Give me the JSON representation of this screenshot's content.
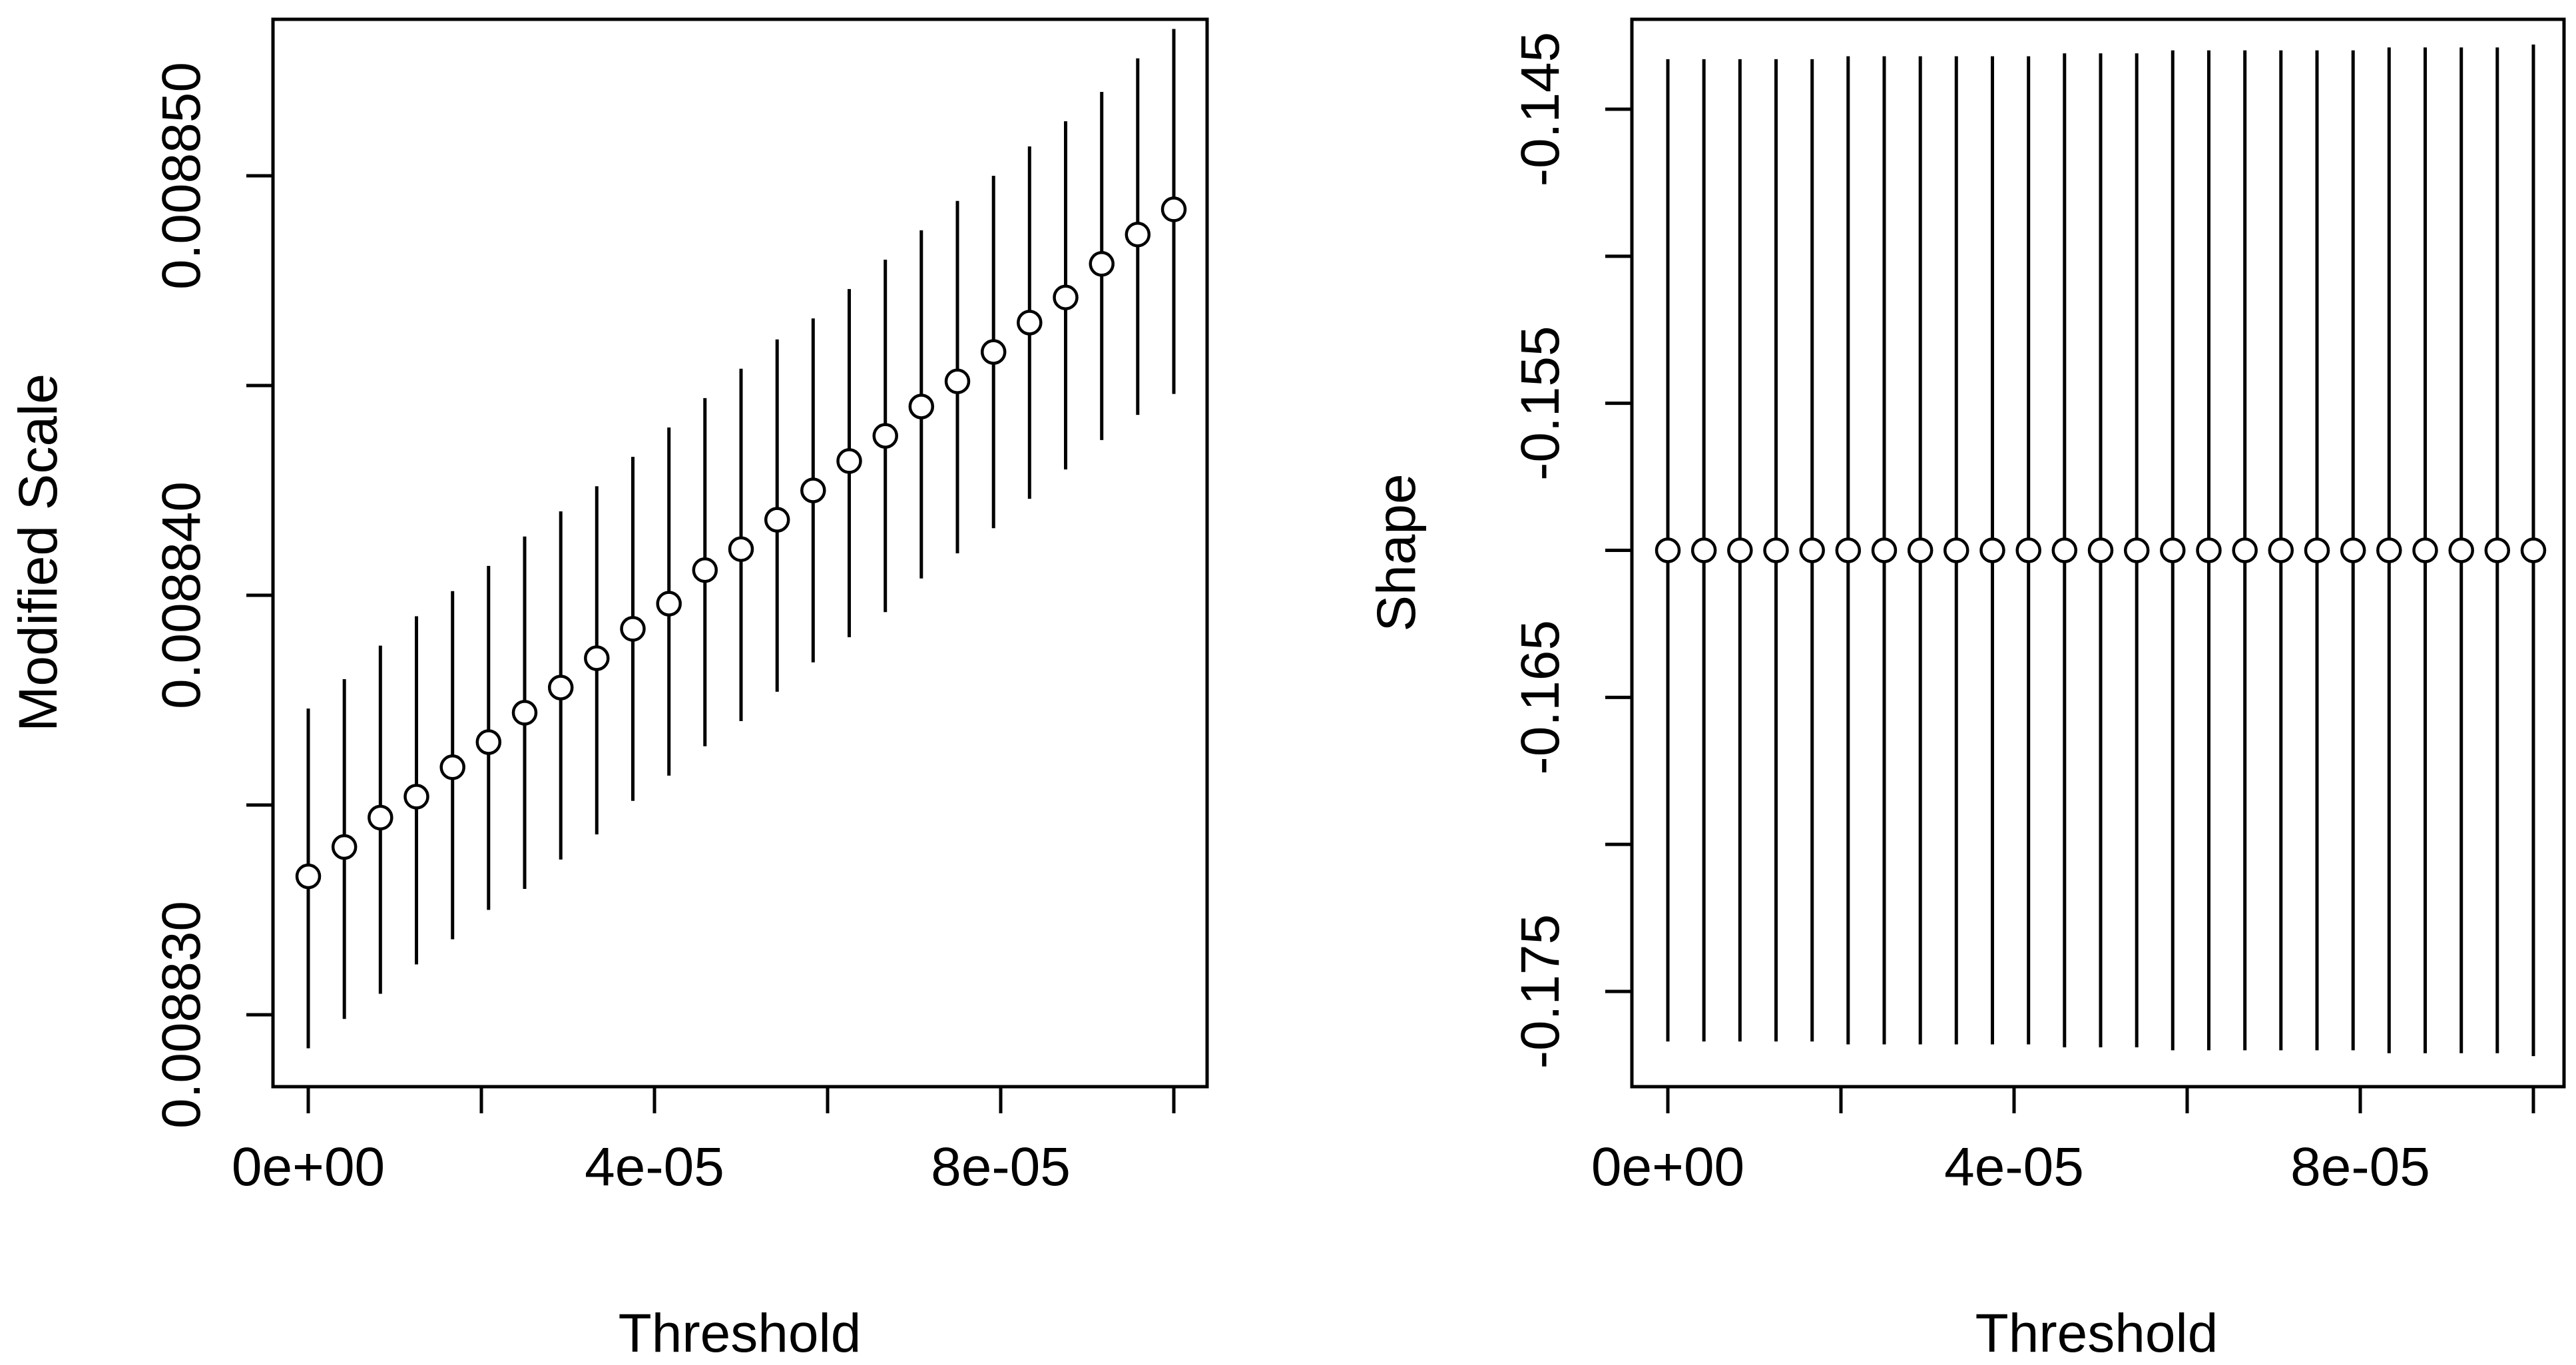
{
  "chart_data": [
    {
      "type": "scatter",
      "error_bars": true,
      "title": "",
      "xlabel": "Threshold",
      "ylabel": "Modified Scale",
      "xlim": [
        0,
        0.0001
      ],
      "ylim": [
        0.008828,
        0.008854
      ],
      "x_ticks": [
        0,
        2e-05,
        4e-05,
        6e-05,
        8e-05,
        0.0001
      ],
      "x_tick_labels": [
        {
          "value": 0,
          "label": "0e+00"
        },
        {
          "value": 4e-05,
          "label": "4e-05"
        },
        {
          "value": 8e-05,
          "label": "8e-05"
        }
      ],
      "y_ticks": [
        0.00883,
        0.008835,
        0.00884,
        0.008845,
        0.00885
      ],
      "y_tick_labels": [
        {
          "value": 0.00883,
          "label": "0.008830"
        },
        {
          "value": 0.00884,
          "label": "0.008840"
        },
        {
          "value": 0.00885,
          "label": "0.008850"
        }
      ],
      "grid": false,
      "legend": "none",
      "series": [
        {
          "x": [
            0,
            4.167e-06,
            8.333e-06,
            1.25e-05,
            1.667e-05,
            2.083e-05,
            2.5e-05,
            2.917e-05,
            3.333e-05,
            3.75e-05,
            4.167e-05,
            4.583e-05,
            5e-05,
            5.417e-05,
            5.833e-05,
            6.25e-05,
            6.667e-05,
            7.083e-05,
            7.5e-05,
            7.917e-05,
            8.333e-05,
            8.75e-05,
            9.167e-05,
            9.583e-05,
            0.0001
          ],
          "y": [
            0.0088333,
            0.008834,
            0.0088347,
            0.0088352,
            0.0088359,
            0.0088365,
            0.0088372,
            0.0088378,
            0.0088385,
            0.0088392,
            0.0088398,
            0.0088406,
            0.0088411,
            0.0088418,
            0.0088425,
            0.0088432,
            0.0088438,
            0.0088445,
            0.0088451,
            0.0088458,
            0.0088465,
            0.0088471,
            0.0088479,
            0.0088486,
            0.0088492
          ],
          "lower": [
            0.0088292,
            0.0088299,
            0.0088305,
            0.0088312,
            0.0088318,
            0.0088325,
            0.008833,
            0.0088337,
            0.0088343,
            0.0088351,
            0.0088357,
            0.0088364,
            0.008837,
            0.0088377,
            0.0088384,
            0.008839,
            0.0088396,
            0.0088404,
            0.008841,
            0.0088416,
            0.0088423,
            0.008843,
            0.0088437,
            0.0088443,
            0.0088448
          ],
          "upper": [
            0.0088373,
            0.008838,
            0.0088388,
            0.0088395,
            0.0088401,
            0.0088407,
            0.0088414,
            0.008842,
            0.0088426,
            0.0088433,
            0.008844,
            0.0088447,
            0.0088454,
            0.0088461,
            0.0088466,
            0.0088473,
            0.008848,
            0.0088487,
            0.0088494,
            0.00885,
            0.0088507,
            0.0088513,
            0.008852,
            0.0088528,
            0.0088535
          ]
        }
      ]
    },
    {
      "type": "scatter",
      "error_bars": true,
      "title": "",
      "xlabel": "Threshold",
      "ylabel": "Shape",
      "xlim": [
        0,
        0.0001
      ],
      "ylim": [
        -0.1785,
        -0.1418
      ],
      "x_ticks": [
        0,
        2e-05,
        4e-05,
        6e-05,
        8e-05,
        0.0001
      ],
      "x_tick_labels": [
        {
          "value": 0,
          "label": "0e+00"
        },
        {
          "value": 4e-05,
          "label": "4e-05"
        },
        {
          "value": 8e-05,
          "label": "8e-05"
        }
      ],
      "y_ticks": [
        -0.175,
        -0.17,
        -0.165,
        -0.16,
        -0.155,
        -0.15,
        -0.145
      ],
      "y_tick_labels": [
        {
          "value": -0.175,
          "label": "-0.175"
        },
        {
          "value": -0.165,
          "label": "-0.165"
        },
        {
          "value": -0.155,
          "label": "-0.155"
        },
        {
          "value": -0.145,
          "label": "-0.145"
        }
      ],
      "grid": false,
      "legend": "none",
      "series": [
        {
          "x": [
            0,
            4.167e-06,
            8.333e-06,
            1.25e-05,
            1.667e-05,
            2.083e-05,
            2.5e-05,
            2.917e-05,
            3.333e-05,
            3.75e-05,
            4.167e-05,
            4.583e-05,
            5e-05,
            5.417e-05,
            5.833e-05,
            6.25e-05,
            6.667e-05,
            7.083e-05,
            7.5e-05,
            7.917e-05,
            8.333e-05,
            8.75e-05,
            9.167e-05,
            9.583e-05,
            0.0001
          ],
          "y": [
            -0.16,
            -0.16,
            -0.16,
            -0.16,
            -0.16,
            -0.16,
            -0.16,
            -0.16,
            -0.16,
            -0.16,
            -0.16,
            -0.16,
            -0.16,
            -0.16,
            -0.16,
            -0.16,
            -0.16,
            -0.16,
            -0.16,
            -0.16,
            -0.16,
            -0.16,
            -0.16,
            -0.16,
            -0.16
          ],
          "lower": [
            -0.1767,
            -0.1767,
            -0.1767,
            -0.1767,
            -0.1767,
            -0.1768,
            -0.1768,
            -0.1768,
            -0.1768,
            -0.1768,
            -0.1768,
            -0.1769,
            -0.1769,
            -0.1769,
            -0.177,
            -0.177,
            -0.177,
            -0.177,
            -0.177,
            -0.177,
            -0.1771,
            -0.1771,
            -0.1771,
            -0.1771,
            -0.1772
          ],
          "upper": [
            -0.1433,
            -0.1433,
            -0.1433,
            -0.1433,
            -0.1433,
            -0.1432,
            -0.1432,
            -0.1432,
            -0.1432,
            -0.1432,
            -0.1432,
            -0.1431,
            -0.1431,
            -0.1431,
            -0.143,
            -0.143,
            -0.143,
            -0.143,
            -0.143,
            -0.143,
            -0.1429,
            -0.1429,
            -0.1429,
            -0.1429,
            -0.1428
          ]
        }
      ]
    }
  ]
}
